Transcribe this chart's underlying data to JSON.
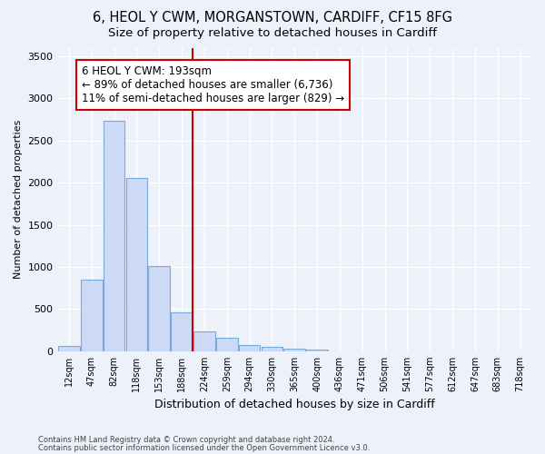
{
  "title1": "6, HEOL Y CWM, MORGANSTOWN, CARDIFF, CF15 8FG",
  "title2": "Size of property relative to detached houses in Cardiff",
  "xlabel": "Distribution of detached houses by size in Cardiff",
  "ylabel": "Number of detached properties",
  "categories": [
    "12sqm",
    "47sqm",
    "82sqm",
    "118sqm",
    "153sqm",
    "188sqm",
    "224sqm",
    "259sqm",
    "294sqm",
    "330sqm",
    "365sqm",
    "400sqm",
    "436sqm",
    "471sqm",
    "506sqm",
    "541sqm",
    "577sqm",
    "612sqm",
    "647sqm",
    "683sqm",
    "718sqm"
  ],
  "values": [
    65,
    850,
    2730,
    2060,
    1010,
    460,
    230,
    155,
    70,
    55,
    30,
    20,
    0,
    0,
    0,
    0,
    0,
    0,
    0,
    0,
    0
  ],
  "bar_color": "#ccdaf5",
  "bar_edge_color": "#7aaad8",
  "property_label": "6 HEOL Y CWM: 193sqm",
  "annotation_line1": "← 89% of detached houses are smaller (6,736)",
  "annotation_line2": "11% of semi-detached houses are larger (829) →",
  "vline_color": "#cc0000",
  "vline_position": 5.47,
  "ylim": [
    0,
    3600
  ],
  "yticks": [
    0,
    500,
    1000,
    1500,
    2000,
    2500,
    3000,
    3500
  ],
  "footer_line1": "Contains HM Land Registry data © Crown copyright and database right 2024.",
  "footer_line2": "Contains public sector information licensed under the Open Government Licence v3.0.",
  "background_color": "#edf2fa",
  "plot_bg_color": "#edf2fa",
  "grid_color": "#ffffff",
  "title1_fontsize": 10.5,
  "title2_fontsize": 9.5,
  "annotation_fontsize": 8.5,
  "ylabel_fontsize": 8,
  "xlabel_fontsize": 9
}
